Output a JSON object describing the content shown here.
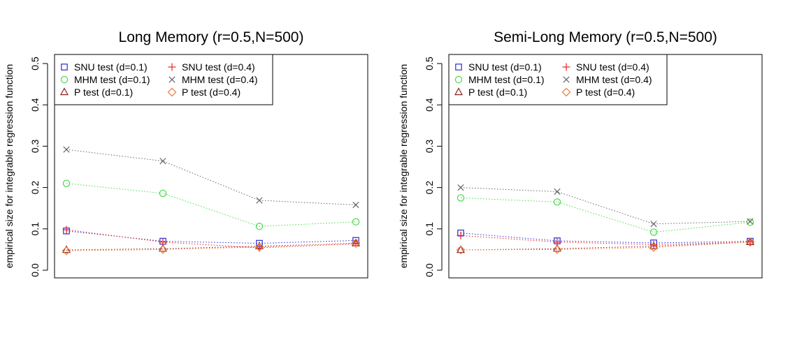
{
  "chart_data": [
    {
      "type": "line",
      "title": "Long Memory (r=0.5,N=500)",
      "ylabel": "empirical size for integrable regression function",
      "xlabel": "",
      "ylim": [
        0,
        0.5
      ],
      "yticks": [
        "0.0",
        "0.1",
        "0.2",
        "0.3",
        "0.4",
        "0.5"
      ],
      "x": [
        1,
        2,
        3,
        4
      ],
      "legend_position": "top-left",
      "series": [
        {
          "name": "SNU test (d=0.1)",
          "marker": "square",
          "color": "#2b2bd6",
          "values": [
            0.095,
            0.07,
            0.065,
            0.072
          ]
        },
        {
          "name": "MHM test (d=0.1)",
          "marker": "circle",
          "color": "#44dd44",
          "values": [
            0.21,
            0.186,
            0.106,
            0.117
          ]
        },
        {
          "name": "P test (d=0.1)",
          "marker": "triangle",
          "color": "#8b2323",
          "values": [
            0.049,
            0.052,
            0.058,
            0.065
          ]
        },
        {
          "name": "SNU test (d=0.4)",
          "marker": "plus",
          "color": "#ee2222",
          "values": [
            0.098,
            0.068,
            0.054,
            0.064
          ]
        },
        {
          "name": "MHM test (d=0.4)",
          "marker": "cross",
          "color": "#666666",
          "values": [
            0.292,
            0.264,
            0.169,
            0.158
          ]
        },
        {
          "name": "P test (d=0.4)",
          "marker": "diamond",
          "color": "#e8793a",
          "values": [
            0.047,
            0.05,
            0.056,
            0.066
          ]
        }
      ]
    },
    {
      "type": "line",
      "title": "Semi-Long Memory (r=0.5,N=500)",
      "ylabel": "empirical size for integrable regression function",
      "xlabel": "",
      "ylim": [
        0,
        0.5
      ],
      "yticks": [
        "0.0",
        "0.1",
        "0.2",
        "0.3",
        "0.4",
        "0.5"
      ],
      "x": [
        1,
        2,
        3,
        4
      ],
      "legend_position": "top-left",
      "series": [
        {
          "name": "SNU test (d=0.1)",
          "marker": "square",
          "color": "#2b2bd6",
          "values": [
            0.09,
            0.071,
            0.066,
            0.07
          ]
        },
        {
          "name": "MHM test (d=0.1)",
          "marker": "circle",
          "color": "#44dd44",
          "values": [
            0.175,
            0.165,
            0.092,
            0.116
          ]
        },
        {
          "name": "P test (d=0.1)",
          "marker": "triangle",
          "color": "#8b2323",
          "values": [
            0.049,
            0.052,
            0.058,
            0.068
          ]
        },
        {
          "name": "SNU test (d=0.4)",
          "marker": "plus",
          "color": "#ee2222",
          "values": [
            0.084,
            0.068,
            0.062,
            0.068
          ]
        },
        {
          "name": "MHM test (d=0.4)",
          "marker": "cross",
          "color": "#666666",
          "values": [
            0.2,
            0.19,
            0.112,
            0.118
          ]
        },
        {
          "name": "P test (d=0.4)",
          "marker": "diamond",
          "color": "#e8793a",
          "values": [
            0.049,
            0.05,
            0.055,
            0.068
          ]
        }
      ]
    }
  ]
}
